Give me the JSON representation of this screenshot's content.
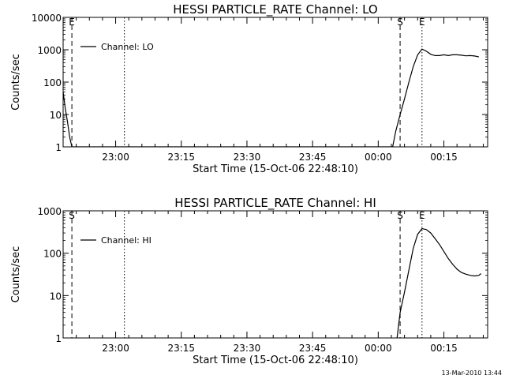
{
  "footer_timestamp": "13-Mar-2010 13:44",
  "chart_data": [
    {
      "type": "line",
      "title": "HESSI PARTICLE_RATE Channel: LO",
      "xlabel": "Start Time (15-Oct-06 22:48:10)",
      "ylabel": "Counts/sec",
      "y_scale": "log",
      "ylim": [
        1,
        10000
      ],
      "y_ticks": [
        1,
        10,
        100,
        1000,
        10000
      ],
      "y_tick_labels": [
        "1",
        "10",
        "100",
        "1000",
        "10000"
      ],
      "xlim_min": [
        0,
        97
      ],
      "x_ticks_min": [
        12,
        27,
        42,
        57,
        72,
        87
      ],
      "x_tick_labels": [
        "23:00",
        "23:15",
        "23:30",
        "23:45",
        "00:00",
        "00:15"
      ],
      "legend": "top-left",
      "series": [
        {
          "name": "Channel: LO",
          "x_min": [
            0,
            0.5,
            1,
            1.5,
            2,
            75.3,
            76,
            77,
            78,
            79,
            80,
            81,
            82,
            83,
            84,
            85,
            86,
            87,
            88,
            89,
            90,
            91,
            92,
            93,
            94,
            95
          ],
          "y": [
            50,
            15,
            6,
            2,
            1,
            1,
            3,
            10,
            30,
            100,
            300,
            700,
            1050,
            900,
            720,
            660,
            660,
            700,
            660,
            700,
            700,
            680,
            650,
            660,
            640,
            600
          ]
        }
      ],
      "markers": [
        {
          "x_min": 2,
          "style": "dashed",
          "label": "E"
        },
        {
          "x_min": 14,
          "style": "dotted",
          "label": ""
        },
        {
          "x_min": 77,
          "style": "dashed",
          "label": "S"
        },
        {
          "x_min": 82,
          "style": "dotted",
          "label": "E"
        },
        {
          "x_min": 97,
          "style": "dashdot",
          "label": ""
        }
      ]
    },
    {
      "type": "line",
      "title": "HESSI PARTICLE_RATE Channel: HI",
      "xlabel": "Start Time (15-Oct-06 22:48:10)",
      "ylabel": "Counts/sec",
      "y_scale": "log",
      "ylim": [
        1,
        1000
      ],
      "y_ticks": [
        1,
        10,
        100,
        1000
      ],
      "y_tick_labels": [
        "1",
        "10",
        "100",
        "1000"
      ],
      "xlim_min": [
        0,
        97
      ],
      "x_ticks_min": [
        12,
        27,
        42,
        57,
        72,
        87
      ],
      "x_tick_labels": [
        "23:00",
        "23:15",
        "23:30",
        "23:45",
        "00:00",
        "00:15"
      ],
      "legend": "top-left",
      "series": [
        {
          "name": "Channel: HI",
          "x_min": [
            76.3,
            77,
            78,
            79,
            80,
            81,
            82,
            83,
            84,
            85,
            86,
            87,
            88,
            89,
            90,
            91,
            92,
            93,
            94,
            95,
            95.5
          ],
          "y": [
            1,
            4,
            12,
            40,
            130,
            280,
            380,
            360,
            300,
            220,
            160,
            110,
            75,
            55,
            42,
            35,
            32,
            30,
            29,
            30,
            33
          ]
        }
      ],
      "markers": [
        {
          "x_min": 2,
          "style": "dashed",
          "label": "S"
        },
        {
          "x_min": 14,
          "style": "dotted",
          "label": ""
        },
        {
          "x_min": 77,
          "style": "dashed",
          "label": "S"
        },
        {
          "x_min": 82,
          "style": "dotted",
          "label": "E"
        },
        {
          "x_min": 97,
          "style": "dashdot",
          "label": ""
        }
      ]
    }
  ]
}
